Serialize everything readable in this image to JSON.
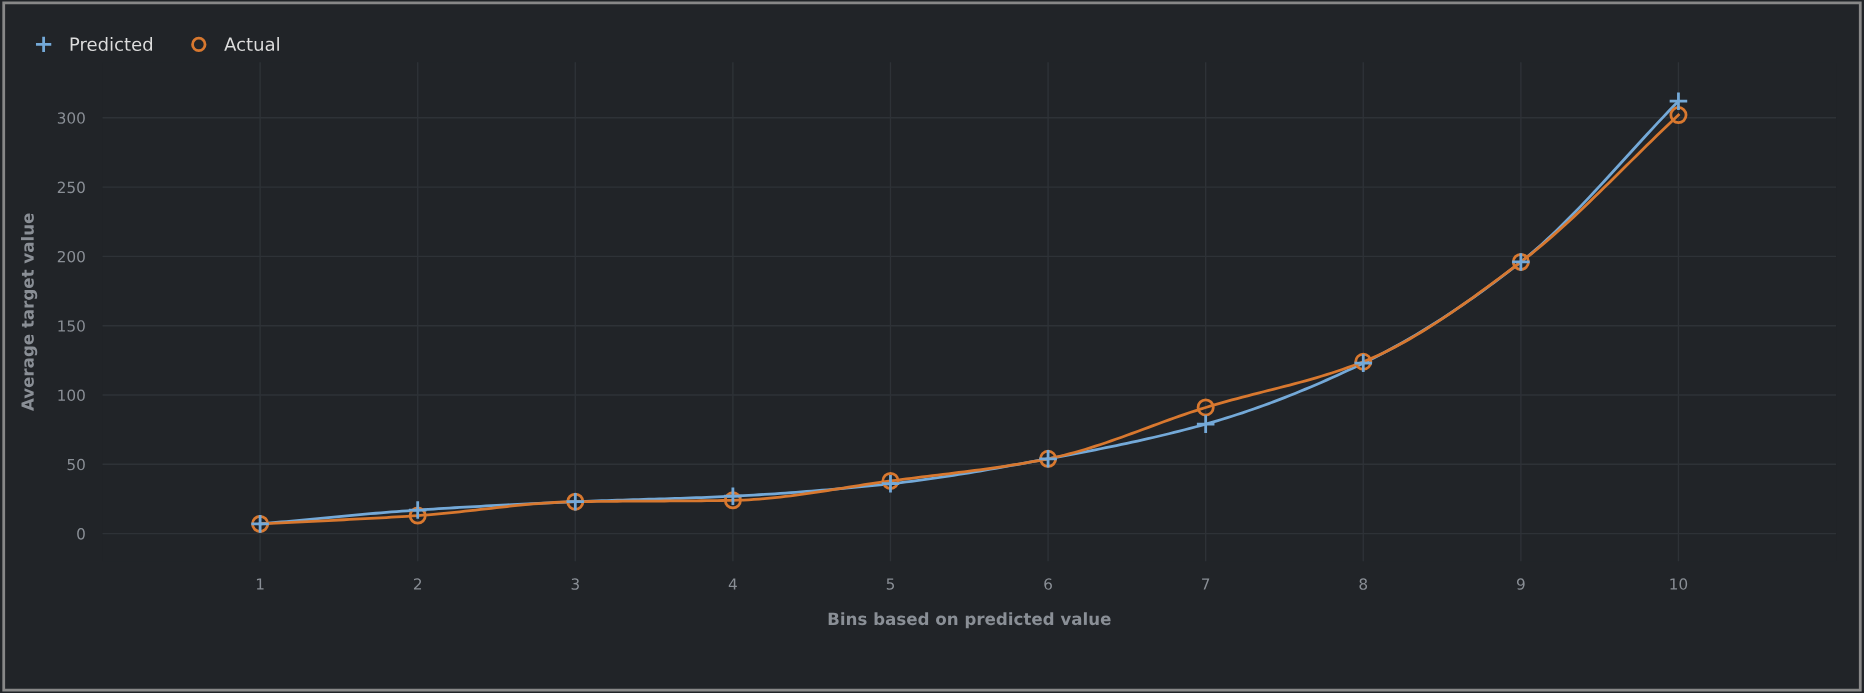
{
  "chart_data": {
    "type": "line",
    "xlabel": "Bins based on predicted value",
    "ylabel": "Average target value",
    "x": [
      1,
      2,
      3,
      4,
      5,
      6,
      7,
      8,
      9,
      10
    ],
    "series": [
      {
        "name": "Predicted",
        "color": "#74a9d8",
        "marker": "cross",
        "values": [
          7,
          17,
          23,
          27,
          36,
          54,
          79,
          123,
          196,
          312
        ]
      },
      {
        "name": "Actual",
        "color": "#d8782f",
        "marker": "circle",
        "values": [
          7,
          13,
          23,
          24,
          38,
          54,
          91,
          124,
          196,
          302
        ]
      }
    ],
    "xlim": [
      0,
      11
    ],
    "xticks": [
      1,
      2,
      3,
      4,
      5,
      6,
      7,
      8,
      9,
      10
    ],
    "ylim": [
      -20,
      340
    ],
    "yticks": [
      0,
      50,
      100,
      150,
      200,
      250,
      300
    ],
    "grid": true,
    "legend": "top left",
    "line_style": "solid"
  }
}
